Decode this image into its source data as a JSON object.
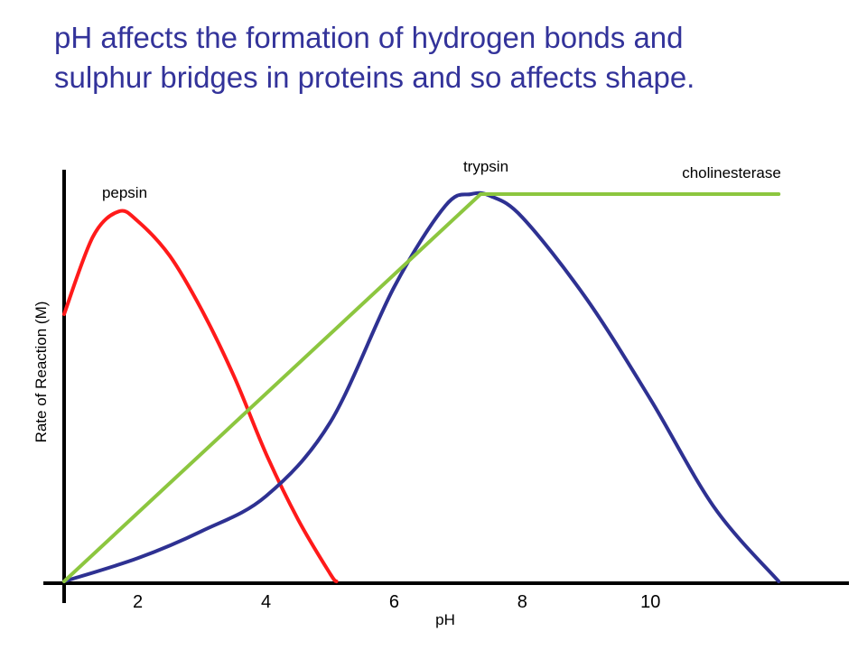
{
  "title": {
    "line1": "pH affects the formation of hydrogen bonds and",
    "line2": "sulphur bridges in proteins and so affects shape."
  },
  "chart_data": {
    "type": "line",
    "xlabel": "pH",
    "ylabel": "Rate of Reaction (M)",
    "xlim": [
      0.85,
      12.35
    ],
    "ylim": [
      0,
      100
    ],
    "xticks": [
      "2",
      "4",
      "6",
      "8",
      "10"
    ],
    "xtick_values": [
      2,
      4,
      6,
      8,
      10
    ],
    "grid": false,
    "legend": "none",
    "series": [
      {
        "name": "pepsin",
        "color": "#ff1a1a",
        "x": [
          0.85,
          1.3,
          1.7,
          2.0,
          2.5,
          3.0,
          3.5,
          4.0,
          4.5,
          5.0,
          5.1
        ],
        "y": [
          69,
          89,
          95.5,
          93,
          84,
          70,
          53,
          33,
          16,
          2,
          0
        ]
      },
      {
        "name": "trypsin",
        "color": "#2e3192",
        "x": [
          0.85,
          2.0,
          3.0,
          4.0,
          5.0,
          6.0,
          6.8,
          7.2,
          7.5,
          8.0,
          9.0,
          10.0,
          11.0,
          12.0
        ],
        "y": [
          0,
          6,
          13,
          22,
          41,
          76,
          97,
          100,
          99.5,
          94,
          73,
          47,
          19,
          0
        ]
      },
      {
        "name": "cholinesterase",
        "color": "#8cc63f",
        "x": [
          0.85,
          7.35,
          12.0
        ],
        "y": [
          0,
          100,
          100
        ]
      }
    ]
  }
}
